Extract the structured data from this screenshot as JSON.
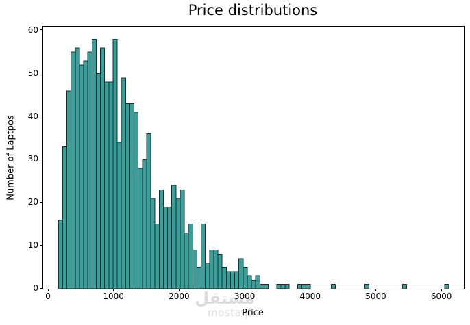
{
  "title": "Price distributions",
  "x_axis": {
    "label": "Price",
    "ticks": [
      0,
      1000,
      2000,
      3000,
      4000,
      5000,
      6000
    ]
  },
  "y_axis": {
    "label": "Number of Laptpos",
    "ticks": [
      0,
      10,
      20,
      30,
      40,
      50,
      60
    ]
  },
  "watermark": {
    "arabic": "مستقل",
    "latin": "mostaql"
  },
  "colors": {
    "bar_fill": "#389f9a",
    "bar_edge": "#1c2e2d",
    "axis": "#000000",
    "text": "#000000",
    "watermark": "#dcdcdc",
    "background": "#ffffff"
  },
  "chart_data": {
    "type": "bar",
    "subtype": "histogram",
    "title": "Price distributions",
    "xlabel": "Price",
    "ylabel": "Number of Laptpos",
    "bin_start": 150,
    "bin_width": 64,
    "bin_count": 93,
    "values": [
      16,
      33,
      46,
      55,
      56,
      52,
      53,
      55,
      58,
      50,
      56,
      48,
      48,
      58,
      34,
      49,
      43,
      43,
      41,
      28,
      30,
      36,
      21,
      15,
      23,
      19,
      19,
      24,
      21,
      23,
      13,
      15,
      9,
      5,
      15,
      6,
      9,
      9,
      8,
      5,
      4,
      4,
      4,
      7,
      5,
      3,
      2,
      3,
      1,
      1,
      0,
      0,
      1,
      1,
      1,
      0,
      0,
      1,
      1,
      1,
      0,
      0,
      0,
      0,
      0,
      1,
      0,
      0,
      0,
      0,
      0,
      0,
      0,
      1,
      0,
      0,
      0,
      0,
      0,
      0,
      0,
      0,
      1,
      0,
      0,
      0,
      0,
      0,
      0,
      0,
      0,
      0,
      1
    ],
    "xlim": [
      -84,
      6334
    ],
    "ylim": [
      0,
      60.9
    ],
    "x_ticks": [
      0,
      1000,
      2000,
      3000,
      4000,
      5000,
      6000
    ],
    "y_ticks": [
      0,
      10,
      20,
      30,
      40,
      50,
      60
    ],
    "grid": false,
    "legend": false
  }
}
